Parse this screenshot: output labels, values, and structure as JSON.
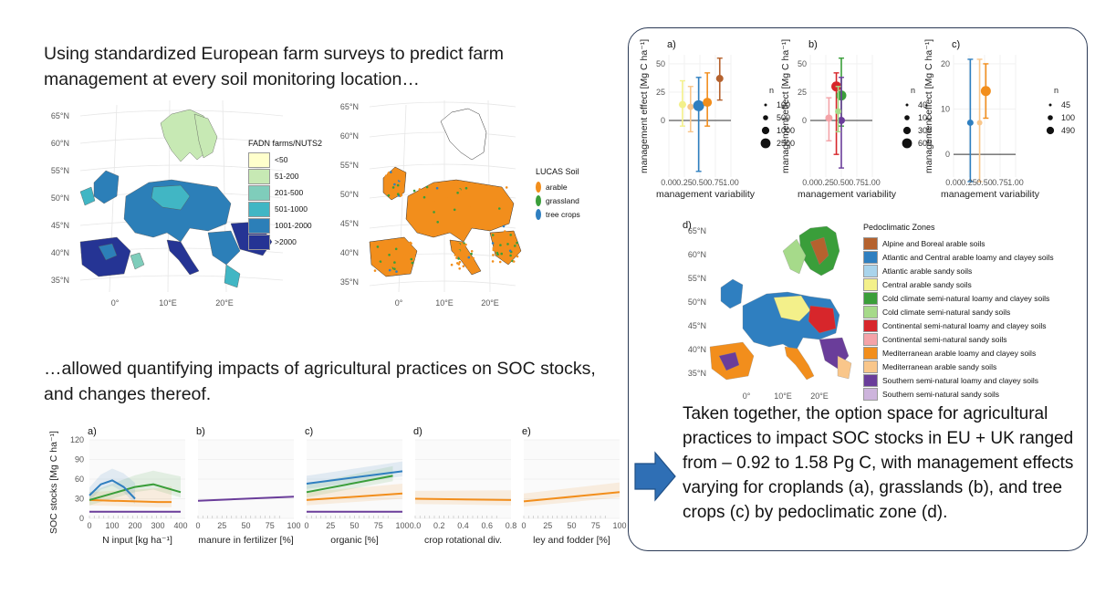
{
  "heading_top": "Using standardized European farm surveys to predict farm management at every soil monitoring location…",
  "heading_mid": "…allowed quantifying impacts of agricultural practices on SOC stocks, and changes thereof.",
  "summary": "Taken together, the option space for agricultural practices to impact SOC stocks in EU + UK ranged from – 0.92 to 1.58 Pg C, with management effects varying for croplands (a), grasslands (b), and tree crops (c) by pedoclimatic zone (d).",
  "map_lat_ticks": [
    "65°N",
    "60°N",
    "55°N",
    "50°N",
    "45°N",
    "40°N",
    "35°N"
  ],
  "map_lon_ticks": [
    "0°",
    "10°E",
    "20°E"
  ],
  "fadn_legend": {
    "title": "FADN farms/NUTS2",
    "items": [
      {
        "label": "<50",
        "color": "#ffffcc"
      },
      {
        "label": "51-200",
        "color": "#c7e9b4"
      },
      {
        "label": "201-500",
        "color": "#7fcdbb"
      },
      {
        "label": "501-1000",
        "color": "#41b6c4"
      },
      {
        "label": "1001-2000",
        "color": "#2c7fb8"
      },
      {
        "label": ">2000",
        "color": "#253494"
      }
    ]
  },
  "lucas_legend": {
    "title": "LUCAS Soil",
    "items": [
      {
        "label": "arable",
        "color": "#f28e1c"
      },
      {
        "label": "grassland",
        "color": "#3a9e3a"
      },
      {
        "label": "tree crops",
        "color": "#2f7fc0"
      }
    ]
  },
  "pedo_legend": {
    "title": "Pedoclimatic Zones",
    "items": [
      {
        "label": "Alpine and Boreal arable soils",
        "color": "#b5622e"
      },
      {
        "label": "Atlantic and Central arable loamy and clayey soils",
        "color": "#2f7fc0"
      },
      {
        "label": "Atlantic arable sandy soils",
        "color": "#a9d4ec"
      },
      {
        "label": "Central arable sandy soils",
        "color": "#f3f08a"
      },
      {
        "label": "Cold climate semi-natural loamy and clayey soils",
        "color": "#3a9e3a"
      },
      {
        "label": "Cold climate semi-natural sandy soils",
        "color": "#a6da8a"
      },
      {
        "label": "Continental semi-natural loamy and clayey soils",
        "color": "#d7262b"
      },
      {
        "label": "Continental semi-natural sandy soils",
        "color": "#f4a3a8"
      },
      {
        "label": "Mediterranean arable loamy and clayey soils",
        "color": "#f28e1c"
      },
      {
        "label": "Mediterranean arable sandy soils",
        "color": "#f9c68a"
      },
      {
        "label": "Southern semi-natural loamy and clayey soils",
        "color": "#6a3d9a"
      },
      {
        "label": "Southern semi-natural sandy soils",
        "color": "#cdb4dc"
      }
    ]
  },
  "pedo_map_lat_ticks": [
    "65°N",
    "60°N",
    "55°N",
    "50°N",
    "45°N",
    "40°N",
    "35°N"
  ],
  "pedo_map_lon_ticks": [
    "0°",
    "10°E",
    "20°E"
  ],
  "panel_d_label": "d)",
  "chart_data": [
    {
      "type": "line",
      "panel": "a)",
      "xlabel": "N input [kg ha⁻¹]",
      "ylabel": "SOC stocks [Mg C ha⁻¹]",
      "xlim": [
        0,
        420
      ],
      "ylim": [
        0,
        120
      ],
      "x_ticks": [
        "0",
        "100",
        "200",
        "300",
        "400"
      ],
      "y_ticks": [
        "0",
        "30",
        "60",
        "90",
        "120"
      ],
      "series": [
        {
          "color": "#f28e1c",
          "x": [
            0,
            100,
            200,
            300,
            360
          ],
          "y": [
            28,
            27,
            26,
            25,
            25
          ]
        },
        {
          "color": "#3a9e3a",
          "x": [
            0,
            100,
            200,
            280,
            400
          ],
          "y": [
            28,
            38,
            48,
            52,
            40
          ]
        },
        {
          "color": "#2f7fc0",
          "x": [
            0,
            50,
            100,
            150,
            200
          ],
          "y": [
            35,
            52,
            58,
            48,
            30
          ]
        },
        {
          "color": "#6a3d9a",
          "x": [
            0,
            100,
            200,
            300,
            400
          ],
          "y": [
            10,
            10,
            10,
            10,
            10
          ]
        }
      ]
    },
    {
      "type": "line",
      "panel": "b)",
      "xlabel": "manure in fertilizer [%]",
      "xlim": [
        0,
        100
      ],
      "ylim": [
        0,
        120
      ],
      "x_ticks": [
        "0",
        "25",
        "50",
        "75",
        "100"
      ],
      "series": [
        {
          "color": "#6a3d9a",
          "x": [
            0,
            100
          ],
          "y": [
            27,
            33
          ]
        }
      ]
    },
    {
      "type": "line",
      "panel": "c)",
      "xlabel": "organic [%]",
      "xlim": [
        0,
        100
      ],
      "ylim": [
        0,
        120
      ],
      "x_ticks": [
        "0",
        "25",
        "50",
        "75",
        "100"
      ],
      "series": [
        {
          "color": "#2f7fc0",
          "x": [
            0,
            100
          ],
          "y": [
            53,
            72
          ]
        },
        {
          "color": "#3a9e3a",
          "x": [
            0,
            90
          ],
          "y": [
            40,
            65
          ]
        },
        {
          "color": "#f28e1c",
          "x": [
            0,
            100
          ],
          "y": [
            28,
            38
          ]
        },
        {
          "color": "#6a3d9a",
          "x": [
            0,
            100
          ],
          "y": [
            10,
            10
          ]
        }
      ]
    },
    {
      "type": "line",
      "panel": "d)",
      "xlabel": "crop rotational div.",
      "xlim": [
        0,
        0.8
      ],
      "ylim": [
        0,
        120
      ],
      "x_ticks": [
        "0.0",
        "0.2",
        "0.4",
        "0.6",
        "0.8"
      ],
      "series": [
        {
          "color": "#f28e1c",
          "x": [
            0,
            0.8
          ],
          "y": [
            30,
            28
          ]
        }
      ]
    },
    {
      "type": "line",
      "panel": "e)",
      "xlabel": "ley and fodder [%]",
      "xlim": [
        0,
        100
      ],
      "ylim": [
        0,
        120
      ],
      "x_ticks": [
        "0",
        "25",
        "50",
        "75",
        "100"
      ],
      "series": [
        {
          "color": "#f28e1c",
          "x": [
            0,
            100
          ],
          "y": [
            26,
            40
          ]
        }
      ]
    },
    {
      "type": "scatter",
      "panel": "a)",
      "xlabel": "management variability",
      "ylabel": "management effect [Mg C ha⁻¹]",
      "xlim": [
        0,
        1
      ],
      "ylim": [
        -50,
        58
      ],
      "x_ticks": [
        "0.00",
        "0.25",
        "0.50",
        "0.75",
        "1.00"
      ],
      "y_ticks": [
        "0",
        "25",
        "50"
      ],
      "size_legend": {
        "title": "n",
        "labels": [
          "100",
          "500",
          "1000",
          "2500"
        ]
      },
      "points": [
        {
          "x": 0.22,
          "y": 14,
          "lo": -5,
          "hi": 35,
          "color": "#f3f08a",
          "size": 6
        },
        {
          "x": 0.35,
          "y": 12,
          "lo": -10,
          "hi": 30,
          "color": "#f9c68a",
          "size": 5
        },
        {
          "x": 0.48,
          "y": 13,
          "lo": -45,
          "hi": 38,
          "color": "#2f7fc0",
          "size": 10
        },
        {
          "x": 0.62,
          "y": 16,
          "lo": -5,
          "hi": 42,
          "color": "#f28e1c",
          "size": 8
        },
        {
          "x": 0.82,
          "y": 37,
          "lo": 18,
          "hi": 55,
          "color": "#b5622e",
          "size": 6
        }
      ]
    },
    {
      "type": "scatter",
      "panel": "b)",
      "xlabel": "management variability",
      "ylabel": "management effect [Mg C ha⁻¹]",
      "xlim": [
        0,
        1
      ],
      "ylim": [
        -50,
        58
      ],
      "x_ticks": [
        "0.00",
        "0.25",
        "0.50",
        "0.75",
        "1.00"
      ],
      "y_ticks": [
        "0",
        "25",
        "50"
      ],
      "size_legend": {
        "title": "n",
        "labels": [
          "40",
          "100",
          "300",
          "600"
        ]
      },
      "points": [
        {
          "x": 0.3,
          "y": 2,
          "lo": -18,
          "hi": 20,
          "color": "#f4a3a8",
          "size": 6
        },
        {
          "x": 0.42,
          "y": 30,
          "lo": -30,
          "hi": 42,
          "color": "#d7262b",
          "size": 9
        },
        {
          "x": 0.5,
          "y": 22,
          "lo": -5,
          "hi": 55,
          "color": "#3a9e3a",
          "size": 9
        },
        {
          "x": 0.5,
          "y": 0,
          "lo": -42,
          "hi": 38,
          "color": "#6a3d9a",
          "size": 6
        },
        {
          "x": 0.45,
          "y": 8,
          "lo": -10,
          "hi": 30,
          "color": "#a6da8a",
          "size": 5
        }
      ]
    },
    {
      "type": "scatter",
      "panel": "c)",
      "xlabel": "management variability",
      "ylabel": "management effect [Mg C ha⁻¹]",
      "xlim": [
        0,
        1
      ],
      "ylim": [
        -5,
        22
      ],
      "x_ticks": [
        "0.00",
        "0.25",
        "0.50",
        "0.75",
        "1.00"
      ],
      "y_ticks": [
        "0",
        "10",
        "20"
      ],
      "size_legend": {
        "title": "n",
        "labels": [
          "45",
          "100",
          "490"
        ]
      },
      "points": [
        {
          "x": 0.27,
          "y": 7,
          "lo": -6,
          "hi": 21,
          "color": "#2f7fc0",
          "size": 5
        },
        {
          "x": 0.42,
          "y": 7,
          "lo": -6,
          "hi": 21,
          "color": "#f9c68a",
          "size": 4
        },
        {
          "x": 0.52,
          "y": 14,
          "lo": 8,
          "hi": 20,
          "color": "#f28e1c",
          "size": 9
        }
      ]
    }
  ]
}
